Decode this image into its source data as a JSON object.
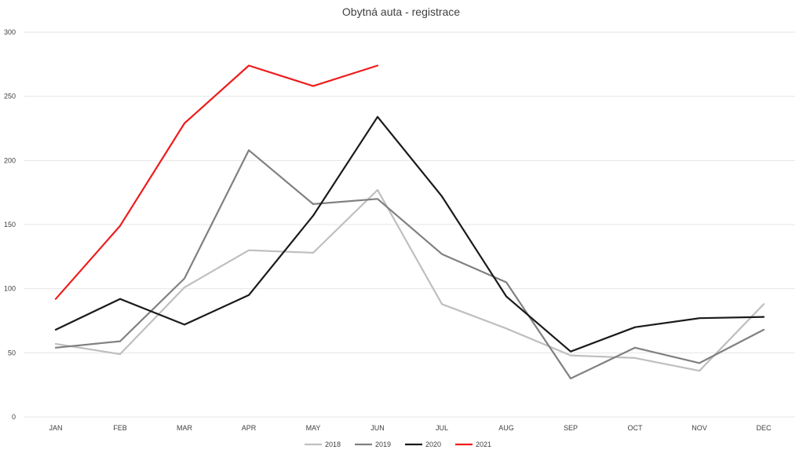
{
  "chart_data": {
    "type": "line",
    "title": "Obytná auta - registrace",
    "xlabel": "",
    "ylabel": "",
    "ylim": [
      0,
      300
    ],
    "yticks": [
      0,
      50,
      100,
      150,
      200,
      250,
      300
    ],
    "grid": true,
    "legend_position": "bottom",
    "categories": [
      "JAN",
      "FEB",
      "MAR",
      "APR",
      "MAY",
      "JUN",
      "JUL",
      "AUG",
      "SEP",
      "OCT",
      "NOV",
      "DEC"
    ],
    "series": [
      {
        "name": "2018",
        "color": "#bfbfbf",
        "values": [
          57,
          49,
          101,
          130,
          128,
          177,
          88,
          69,
          48,
          46,
          36,
          88
        ]
      },
      {
        "name": "2019",
        "color": "#808080",
        "values": [
          54,
          59,
          108,
          208,
          166,
          170,
          127,
          105,
          30,
          54,
          42,
          68
        ]
      },
      {
        "name": "2020",
        "color": "#1a1a1a",
        "values": [
          68,
          92,
          72,
          95,
          157,
          234,
          172,
          94,
          51,
          70,
          77,
          78
        ]
      },
      {
        "name": "2021",
        "color": "#ee1c1c",
        "values": [
          92,
          149,
          229,
          274,
          258,
          274,
          null,
          null,
          null,
          null,
          null,
          null
        ]
      }
    ]
  }
}
